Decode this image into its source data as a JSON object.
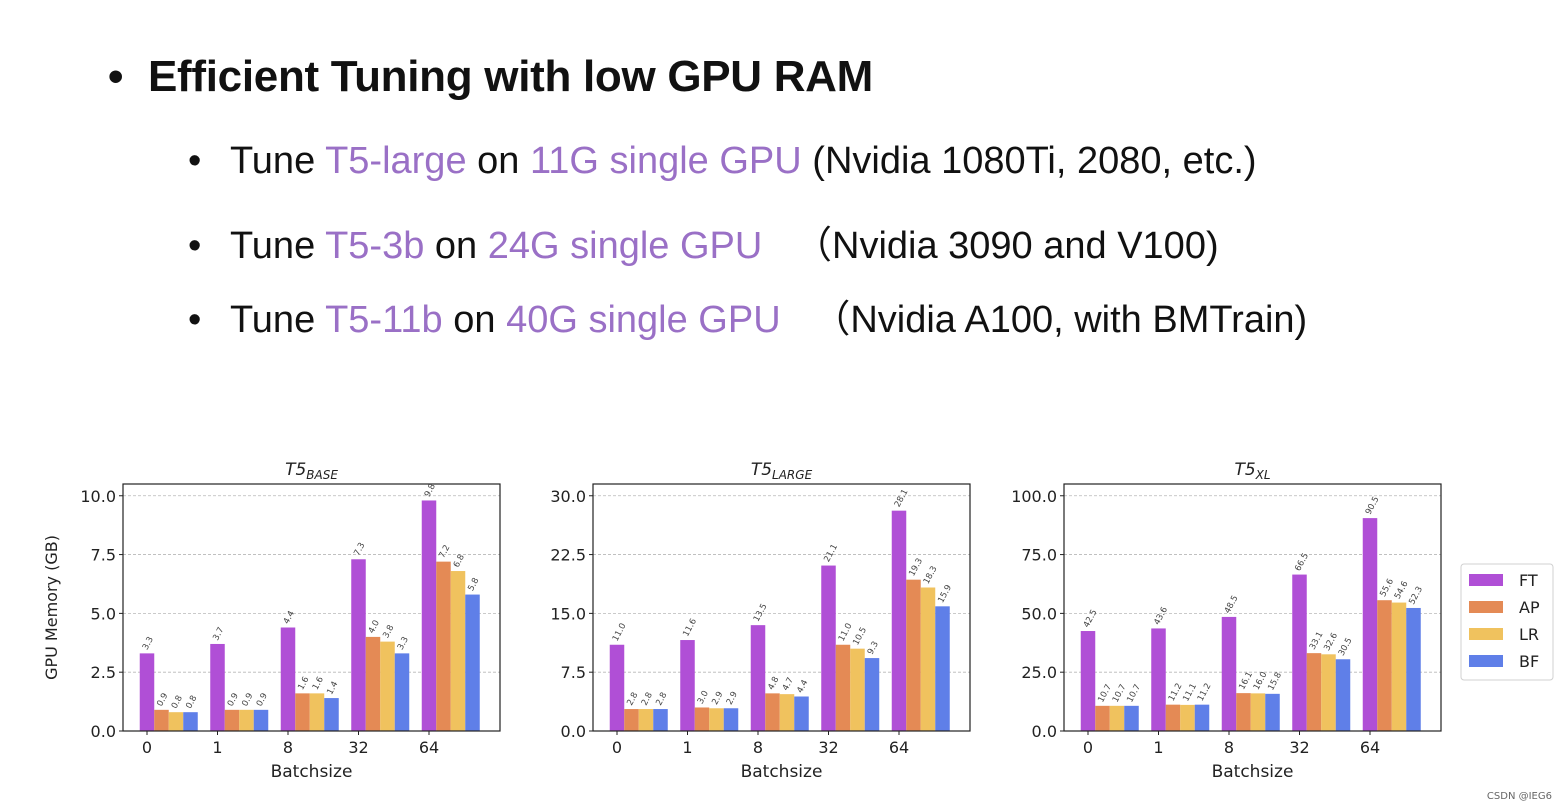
{
  "slide": {
    "title_bullet": "•",
    "title": "Efficient Tuning with low GPU RAM",
    "bullets": [
      {
        "dot": "•",
        "pre": "Tune ",
        "model": "T5-large",
        "mid": " on ",
        "gpu": "11G single GPU",
        "post": " (Nvidia 1080Ti, 2080, etc.)"
      },
      {
        "dot": "•",
        "pre": "Tune ",
        "model": "T5-3b",
        "mid": " on ",
        "gpu": "24G single GPU",
        "post": "   （Nvidia 3090 and V100)"
      },
      {
        "dot": "•",
        "pre": "Tune ",
        "model": "T5-11b",
        "mid": " on ",
        "gpu": "40G single GPU",
        "post": "   （Nvidia A100, with BMTrain)"
      }
    ],
    "highlight_color": "#9a70c6"
  },
  "watermark": "CSDN @IEG6",
  "chart_data": [
    {
      "type": "bar",
      "title": "T5",
      "title_sub": "BASE",
      "xlabel": "Batchsize",
      "ylabel": "GPU Memory (GB)",
      "categories": [
        "0",
        "1",
        "8",
        "32",
        "64"
      ],
      "ylim": [
        0,
        10.5
      ],
      "yticks": [
        0.0,
        2.5,
        5.0,
        7.5,
        10.0
      ],
      "ytick_labels": [
        "0.0",
        "2.5",
        "5.0",
        "7.5",
        "10.0"
      ],
      "grid": true,
      "series": [
        {
          "name": "FT",
          "values": [
            3.3,
            3.7,
            4.4,
            7.3,
            9.8
          ],
          "labels": [
            "3.3",
            "3.7",
            "4.4",
            "7.3",
            "9.8"
          ]
        },
        {
          "name": "AP",
          "values": [
            0.9,
            0.9,
            1.6,
            4.0,
            7.2
          ],
          "labels": [
            "0.9",
            "0.9",
            "1.6",
            "4.0",
            "7.2"
          ]
        },
        {
          "name": "LR",
          "values": [
            0.8,
            0.9,
            1.6,
            3.8,
            6.8
          ],
          "labels": [
            "0.8",
            "0.9",
            "1.6",
            "3.8",
            "6.8"
          ]
        },
        {
          "name": "BF",
          "values": [
            0.8,
            0.9,
            1.4,
            3.3,
            5.8
          ],
          "labels": [
            "0.8",
            "0.9",
            "1.4",
            "3.3",
            "5.8"
          ]
        }
      ]
    },
    {
      "type": "bar",
      "title": "T5",
      "title_sub": "LARGE",
      "xlabel": "Batchsize",
      "ylabel": "",
      "categories": [
        "0",
        "1",
        "8",
        "32",
        "64"
      ],
      "ylim": [
        0,
        31.5
      ],
      "yticks": [
        0.0,
        7.5,
        15.0,
        22.5,
        30.0
      ],
      "ytick_labels": [
        "0.0",
        "7.5",
        "15.0",
        "22.5",
        "30.0"
      ],
      "grid": true,
      "series": [
        {
          "name": "FT",
          "values": [
            11.0,
            11.6,
            13.5,
            21.1,
            28.1
          ],
          "labels": [
            "11.0",
            "11.6",
            "13.5",
            "21.1",
            "28.1"
          ]
        },
        {
          "name": "AP",
          "values": [
            2.8,
            3.0,
            4.8,
            11.0,
            19.3
          ],
          "labels": [
            "2.8",
            "3.0",
            "4.8",
            "11.0",
            "19.3"
          ]
        },
        {
          "name": "LR",
          "values": [
            2.8,
            2.9,
            4.7,
            10.5,
            18.3
          ],
          "labels": [
            "2.8",
            "2.9",
            "4.7",
            "10.5",
            "18.3"
          ]
        },
        {
          "name": "BF",
          "values": [
            2.8,
            2.9,
            4.4,
            9.3,
            15.9
          ],
          "labels": [
            "2.8",
            "2.9",
            "4.4",
            "9.3",
            "15.9"
          ]
        }
      ]
    },
    {
      "type": "bar",
      "title": "T5",
      "title_sub": "XL",
      "xlabel": "Batchsize",
      "ylabel": "",
      "categories": [
        "0",
        "1",
        "8",
        "32",
        "64"
      ],
      "ylim": [
        0,
        105
      ],
      "yticks": [
        0.0,
        25.0,
        50.0,
        75.0,
        100.0
      ],
      "ytick_labels": [
        "0.0",
        "25.0",
        "50.0",
        "75.0",
        "100.0"
      ],
      "grid": true,
      "legend_position": "right",
      "series": [
        {
          "name": "FT",
          "values": [
            42.5,
            43.6,
            48.5,
            66.5,
            90.5
          ],
          "labels": [
            "42.5",
            "43.6",
            "48.5",
            "66.5",
            "90.5"
          ]
        },
        {
          "name": "AP",
          "values": [
            10.7,
            11.2,
            16.1,
            33.1,
            55.6
          ],
          "labels": [
            "10.7",
            "11.2",
            "16.1",
            "33.1",
            "55.6"
          ]
        },
        {
          "name": "LR",
          "values": [
            10.7,
            11.1,
            16.0,
            32.6,
            54.6
          ],
          "labels": [
            "10.7",
            "11.1",
            "16.0",
            "32.6",
            "54.6"
          ]
        },
        {
          "name": "BF",
          "values": [
            10.7,
            11.2,
            15.8,
            30.5,
            52.3
          ],
          "labels": [
            "10.7",
            "11.2",
            "15.8",
            "30.5",
            "52.3"
          ]
        }
      ]
    }
  ],
  "colors": {
    "FT": "#b04fd6",
    "AP": "#e48a55",
    "LR": "#f0c25e",
    "BF": "#5f7fe8"
  }
}
